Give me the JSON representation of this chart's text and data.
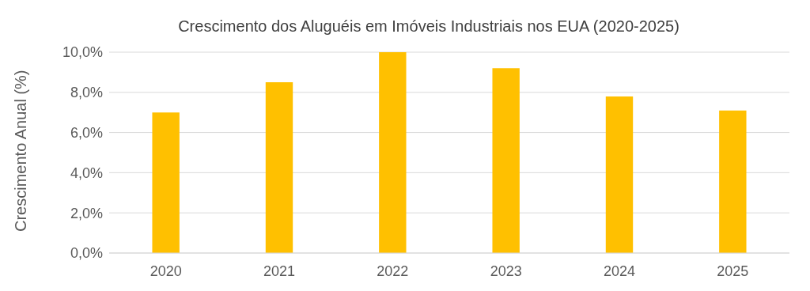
{
  "chart_data": {
    "type": "bar",
    "title": "Crescimento dos Aluguéis em Imóveis Industriais nos EUA (2020-2025)",
    "ylabel": "Crescimento Anual (%)",
    "categories": [
      "2020",
      "2021",
      "2022",
      "2023",
      "2024",
      "2025"
    ],
    "series": [
      {
        "color": "#ffc000",
        "values": [
          7.0,
          8.5,
          10.0,
          9.2,
          7.8,
          7.1
        ]
      }
    ],
    "ylim": [
      0,
      10
    ],
    "yticks": [
      {
        "value": 0,
        "label": "0,0%"
      },
      {
        "value": 2,
        "label": "2,0%"
      },
      {
        "value": 4,
        "label": "4,0%"
      },
      {
        "value": 6,
        "label": "6,0%"
      },
      {
        "value": 8,
        "label": "8,0%"
      },
      {
        "value": 10,
        "label": "10,0%"
      }
    ],
    "grid": "y",
    "legend": false
  }
}
